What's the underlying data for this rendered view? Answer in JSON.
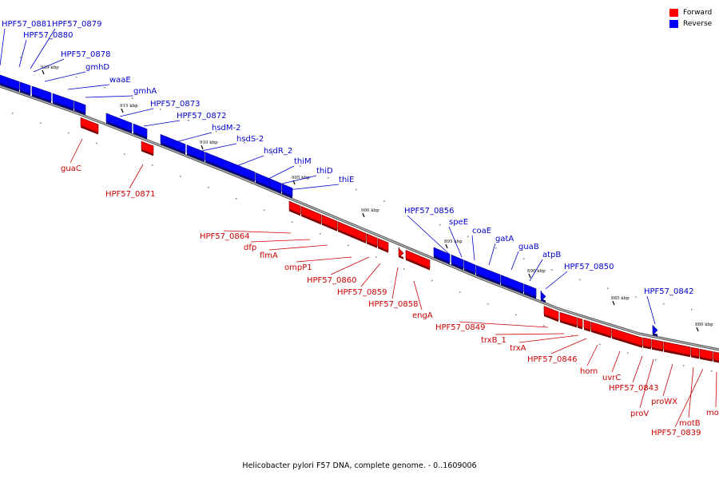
{
  "legend": {
    "forward": {
      "label": "Forward",
      "color": "#ff0000"
    },
    "reverse": {
      "label": "Reverse",
      "color": "#0000ff"
    }
  },
  "caption": "Helicobacter pylori F57 DNA, complete genome. - 0..1609006",
  "scale_labels": [
    "920 kbp",
    "915 kbp",
    "910 kbp",
    "905 kbp",
    "900 kbp",
    "895 kbp",
    "890 kbp",
    "885 kbp",
    "880 kbp"
  ],
  "reverse_genes": [
    "HPF57_0881",
    "HPF57_0879",
    "HPF57_0880",
    "HPF57_0878",
    "gmhD",
    "waaE",
    "gmhA",
    "HPF57_0873",
    "HPF57_0872",
    "hsdM-2",
    "hsdS-2",
    "hsdR_2",
    "thiM",
    "thiD",
    "thiE",
    "HPF57_0856",
    "speE",
    "coaE",
    "gatA",
    "guaB",
    "atpB",
    "HPF57_0850",
    "HPF57_0842"
  ],
  "forward_genes": [
    "guaC",
    "HPF57_0871",
    "HPF57_0864",
    "dfp",
    "flmA",
    "ompP1",
    "HPF57_0860",
    "HPF57_0859",
    "HPF57_0858",
    "engA",
    "HPF57_0849",
    "trxB_1",
    "trxA",
    "HPF57_0846",
    "hom",
    "uvrC",
    "HPF57_0843",
    "proV",
    "proWX",
    "motB",
    "HPF57_0839",
    "motA"
  ]
}
